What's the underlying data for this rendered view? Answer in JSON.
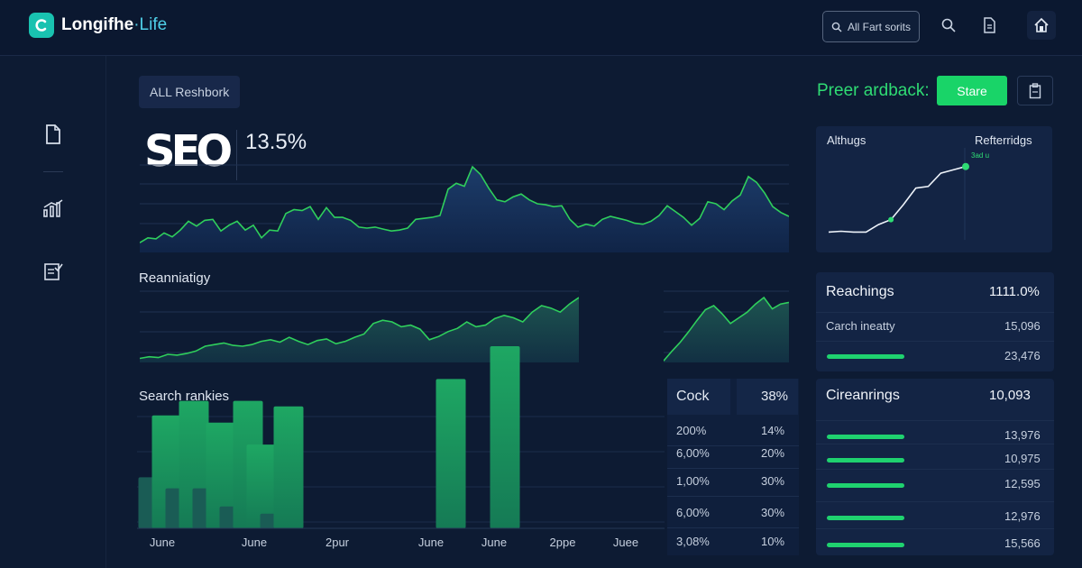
{
  "header": {
    "logo_text_main": "Longifhe",
    "logo_text_accent": "·Life",
    "search_label": "All Fart sorits",
    "icons": [
      "search-icon",
      "document-icon",
      "home-icon"
    ]
  },
  "sidebar": {
    "icons": [
      "document-icon",
      "bar-chart-icon",
      "checklist-icon"
    ]
  },
  "main": {
    "chip_label": "ALL Reshbork",
    "seo_logo_text": "SEO",
    "seo_value": "13.5%",
    "section_ranking": "Reanniatigy",
    "section_search": "Search rankies",
    "feedback_label": "Preer ardback:",
    "share_label": "Stare"
  },
  "charts": {
    "top_area": {
      "type": "area",
      "values": [
        10,
        15,
        14,
        20,
        16,
        23,
        32,
        27,
        33,
        34,
        22,
        28,
        32,
        23,
        28,
        15,
        23,
        22,
        40,
        44,
        43,
        47,
        34,
        46,
        36,
        36,
        33,
        26,
        25,
        26,
        24,
        22,
        23,
        25,
        34,
        35,
        36,
        38,
        65,
        71,
        68,
        88,
        80,
        66,
        54,
        52,
        57,
        60,
        54,
        50,
        49,
        47,
        48,
        34,
        26,
        29,
        27,
        34,
        37,
        35,
        33,
        30,
        29,
        32,
        38,
        48,
        42,
        36,
        28,
        35,
        52,
        50,
        44,
        53,
        59,
        78,
        72,
        61,
        47,
        41,
        37
      ],
      "ylim": [
        0,
        100
      ],
      "color": "#2fcf5c"
    },
    "mid_area_left": {
      "type": "area",
      "values": [
        5,
        7,
        6,
        10,
        9,
        11,
        14,
        20,
        22,
        24,
        21,
        20,
        22,
        26,
        28,
        25,
        31,
        26,
        22,
        27,
        29,
        23,
        26,
        31,
        35,
        48,
        52,
        50,
        44,
        46,
        41,
        28,
        32,
        38,
        42,
        50,
        44,
        46,
        54,
        58,
        55,
        50,
        62,
        70,
        67,
        62,
        72,
        80
      ],
      "ylim": [
        0,
        100
      ],
      "color": "#2fcf5c"
    },
    "mid_area_right": {
      "type": "area",
      "values": [
        2,
        14,
        25,
        38,
        52,
        65,
        70,
        60,
        48,
        55,
        62,
        72,
        80,
        66,
        72,
        74
      ],
      "ylim": [
        0,
        100
      ],
      "color": "#2fcf5c"
    },
    "bars": {
      "type": "bar",
      "values": [
        28,
        62,
        22,
        70,
        22,
        58,
        12,
        70,
        46,
        8,
        67,
        0,
        0,
        0,
        0,
        0,
        0,
        0,
        0,
        0,
        0,
        0,
        82,
        0,
        0,
        0,
        100,
        0,
        0,
        0,
        0,
        0,
        0,
        0,
        0,
        0,
        0,
        0,
        0
      ],
      "ylim": [
        0,
        100
      ],
      "x_labels": [
        "June",
        "June",
        "2pur",
        "June",
        "June",
        "2ppe",
        "Juee"
      ]
    },
    "side_line": {
      "type": "line",
      "values": [
        5,
        6,
        5,
        5,
        14,
        20,
        38,
        58,
        60,
        76,
        80,
        84
      ],
      "ylim": [
        0,
        100
      ],
      "title_left": "Althugs",
      "title_right": "Refterridgs",
      "point_label": "3ad u"
    }
  },
  "mid_table": {
    "header": [
      "Cock",
      "38%"
    ],
    "rows": [
      [
        "200%",
        "14%"
      ],
      [
        "6,00%",
        "20%"
      ],
      [
        "1,00%",
        "30%"
      ],
      [
        "6,00%",
        "30%"
      ],
      [
        "3,08%",
        "10%"
      ]
    ]
  },
  "right_cards": {
    "card1": {
      "title": "Reachings",
      "title_value": "1111.0%",
      "rows": [
        {
          "label": "Carch ineatty",
          "value": "15,096",
          "fill": null
        },
        {
          "label": "",
          "value": "23,476",
          "fill": 0.95
        }
      ]
    },
    "card2": {
      "title": "Cireanrings",
      "title_value": "10,093",
      "rows": [
        {
          "label": "",
          "value": "13,976",
          "fill": 0.86
        },
        {
          "label": "",
          "value": "10,975",
          "fill": 0.86
        },
        {
          "label": "",
          "value": "12,595",
          "fill": 0.86
        },
        {
          "label": "",
          "value": "12,976",
          "fill": 0.86
        },
        {
          "label": "",
          "value": "15,566",
          "fill": 0.86
        }
      ]
    }
  }
}
